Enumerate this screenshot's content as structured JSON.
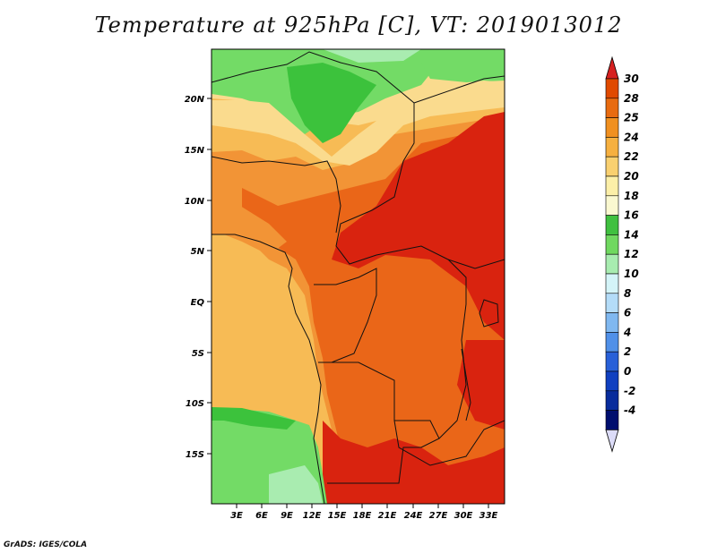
{
  "title": "Temperature at 925hPa [C], VT: 2019013012",
  "footer": "GrADS: IGES/COLA",
  "axes": {
    "lat_labels": [
      "20N",
      "15N",
      "10N",
      "5N",
      "EQ",
      "5S",
      "10S",
      "15S"
    ],
    "lon_labels": [
      "3E",
      "6E",
      "9E",
      "12E",
      "15E",
      "18E",
      "21E",
      "24E",
      "27E",
      "30E",
      "33E"
    ]
  },
  "colorbar": {
    "levels": [
      30,
      28,
      25,
      24,
      22,
      20,
      18,
      16,
      14,
      12,
      10,
      8,
      6,
      4,
      2,
      0,
      -2,
      -4
    ],
    "colors": {
      "top_arrow": "#d62020",
      "bands": [
        "#e04a00",
        "#e86b10",
        "#f09020",
        "#f6b040",
        "#f9d070",
        "#fcefa8",
        "#faf8d0",
        "#40c040",
        "#70d860",
        "#a8ecb0",
        "#d4f4f8",
        "#b4dcf8",
        "#80b8f0",
        "#5090e8",
        "#2860d8",
        "#1040c0",
        "#082c9c",
        "#000e6e"
      ],
      "bottom_arrow": "#dcdcf8"
    }
  },
  "palette": {
    "ocean_warm": "#fadb8e",
    "land_hot": "#d9230f",
    "land_warm": "#ea6618",
    "land_mild": "#f29436",
    "land_cool": "#f7bb55",
    "green_dark": "#3cc23c",
    "green_light": "#73db66",
    "green_pale": "#a9ecb0",
    "borders": "#111111"
  }
}
